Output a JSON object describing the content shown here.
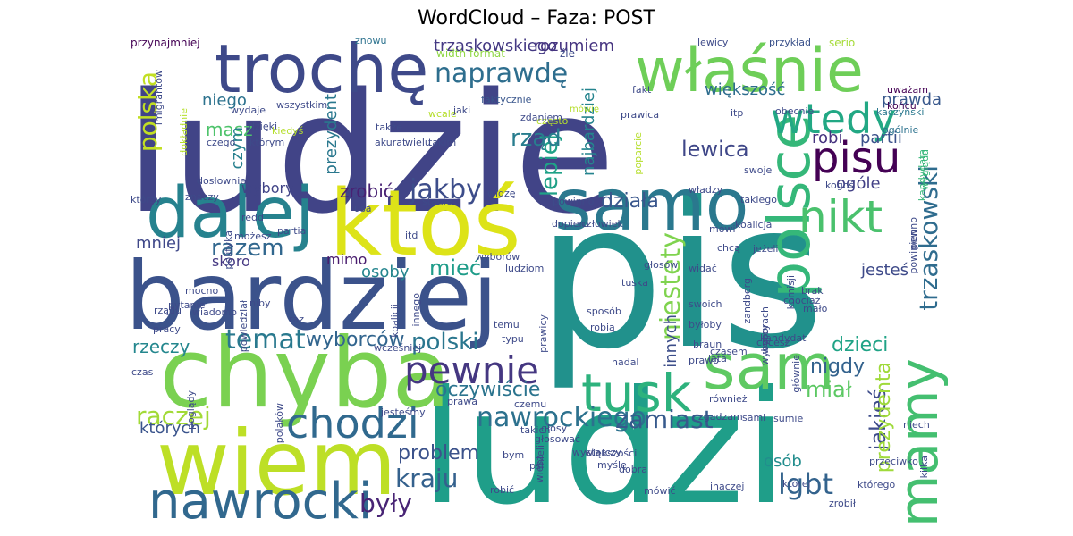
{
  "title": "WordCloud – Faza: POST",
  "words": [
    {
      "text": "ludzie",
      "color": "#414487"
    },
    {
      "text": "pis",
      "color": "#21918c"
    },
    {
      "text": "ludzi",
      "color": "#1f9e89"
    },
    {
      "text": "chyba",
      "color": "#7ad151"
    },
    {
      "text": "bardziej",
      "color": "#3b528b"
    },
    {
      "text": "wiem",
      "color": "#bddf26"
    },
    {
      "text": "ktoś",
      "color": "#dde318"
    },
    {
      "text": "trochę",
      "color": "#3e4989"
    },
    {
      "text": "dalej",
      "color": "#26828e"
    },
    {
      "text": "samo",
      "color": "#2a788e"
    },
    {
      "text": "właśnie",
      "color": "#6ece58"
    },
    {
      "text": "polsce",
      "color": "#35b779"
    },
    {
      "text": "sam",
      "color": "#5ec962"
    },
    {
      "text": "mamy",
      "color": "#44bf70"
    },
    {
      "text": "tusk",
      "color": "#2db27d"
    },
    {
      "text": "pisu",
      "color": "#440154"
    },
    {
      "text": "wtedy",
      "color": "#22a884"
    },
    {
      "text": "nikt",
      "color": "#4ac16d"
    },
    {
      "text": "nawrocki",
      "color": "#31688e"
    },
    {
      "text": "chodzi",
      "color": "#30698e"
    },
    {
      "text": "pewnie",
      "color": "#453781"
    },
    {
      "text": "nawrockiego",
      "color": "#2c718e"
    },
    {
      "text": "jakby",
      "color": "#3d4d8a"
    },
    {
      "text": "naprawdę",
      "color": "#2e6e8e"
    },
    {
      "text": "trzaskowski",
      "color": "#2f6c8e"
    },
    {
      "text": "niestety",
      "color": "#7fd34e"
    },
    {
      "text": "lepiej",
      "color": "#1fa187"
    },
    {
      "text": "rząd",
      "color": "#287d8e"
    },
    {
      "text": "polska",
      "color": "#c2df23"
    },
    {
      "text": "temat",
      "color": "#29798e"
    },
    {
      "text": "polski",
      "color": "#2a768e"
    },
    {
      "text": "zamiast",
      "color": "#375a8c"
    },
    {
      "text": "raczej",
      "color": "#a2da37"
    },
    {
      "text": "lgbt",
      "color": "#33638d"
    },
    {
      "text": "kraju",
      "color": "#34618d"
    },
    {
      "text": "były",
      "color": "#482475"
    },
    {
      "text": "jakieś",
      "color": "#3e4c8a"
    },
    {
      "text": "prezydenta",
      "color": "#9fda3a"
    },
    {
      "text": "dzieci",
      "color": "#20a386"
    },
    {
      "text": "miał",
      "color": "#5cc863"
    },
    {
      "text": "lewica",
      "color": "#3f4788"
    },
    {
      "text": "razem",
      "color": "#31678e"
    },
    {
      "text": "mieć",
      "color": "#1e9c89"
    },
    {
      "text": "wyborców",
      "color": "#32658e"
    },
    {
      "text": "oczywiście",
      "color": "#2b748e"
    },
    {
      "text": "problem",
      "color": "#3b528b"
    },
    {
      "text": "osób",
      "color": "#228d8d"
    },
    {
      "text": "których",
      "color": "#3a548c"
    },
    {
      "text": "nigdy",
      "color": "#33628d"
    },
    {
      "text": "rzeczy",
      "color": "#24878e"
    },
    {
      "text": "działa",
      "color": "#39568c"
    },
    {
      "text": "zrobić",
      "color": "#482173"
    },
    {
      "text": "osoby",
      "color": "#25858e"
    },
    {
      "text": "jesteś",
      "color": "#3e4a89"
    },
    {
      "text": "większość",
      "color": "#2e6d8e"
    },
    {
      "text": "prawda",
      "color": "#38588c"
    },
    {
      "text": "masz",
      "color": "#4ec36b"
    },
    {
      "text": "niego",
      "color": "#2c728e"
    },
    {
      "text": "partii",
      "color": "#3b518b"
    },
    {
      "text": "robi",
      "color": "#46337f"
    },
    {
      "text": "ogóle",
      "color": "#424086"
    },
    {
      "text": "wybory",
      "color": "#414487"
    },
    {
      "text": "skoro",
      "color": "#453882"
    },
    {
      "text": "mniej",
      "color": "#3f4889"
    },
    {
      "text": "trzaskowskiego",
      "color": "#443983"
    },
    {
      "text": "rozumiem",
      "color": "#463480"
    },
    {
      "text": "prezydent",
      "color": "#2a788e"
    },
    {
      "text": "najbardziej",
      "color": "#25848e"
    },
    {
      "text": "innych",
      "color": "#3d4e8a"
    },
    {
      "text": "czym",
      "color": "#27808e"
    },
    {
      "text": "mimo",
      "color": "#481b6d"
    }
  ],
  "small_words": [
    "przynajmniej",
    "znowu",
    "width format",
    "źle",
    "lewicy",
    "przykład",
    "serio",
    "imigrantów",
    "wszystkim",
    "wcale",
    "faktycznie",
    "mówię",
    "fakt",
    "uważam",
    "końcu",
    "kaczyński",
    "ogólnie",
    "dzięki",
    "którym",
    "wydaje",
    "jaki",
    "często",
    "zdaniem",
    "także",
    "wielu",
    "prawica",
    "obecnie",
    "poparcie",
    "kandydata",
    "dokładnie",
    "kiedyś",
    "czego",
    "akurat",
    "takim",
    "itp",
    "wygląda",
    "swoje",
    "dosłownie",
    "znaczy",
    "którzy",
    "widzę",
    "powinno",
    "władzy",
    "kogoś",
    "stanie",
    "usa",
    "takiego",
    "redd",
    "polityka",
    "partia",
    "dopiero",
    "człowiek",
    "możesz",
    "mówi",
    "koalicja",
    "pewno",
    "powinien",
    "itd",
    "chcą",
    "jeżeli",
    "widać",
    "tuska",
    "głosów",
    "komisji",
    "wiadomo",
    "pytanie",
    "powiedział",
    "niby",
    "mocno",
    "koalicji",
    "innego",
    "wyborów",
    "ludziom",
    "sposób",
    "robią",
    "swoich",
    "zandberg",
    "chociaż",
    "brak",
    "mało",
    "raz",
    "temu",
    "typu",
    "wyborach",
    "prawicy",
    "byłoby",
    "braun",
    "wyborcy",
    "pracy",
    "rządu",
    "czasem",
    "chcesz",
    "kandydat",
    "wcześniej",
    "czas",
    "prawo",
    "lata",
    "głównie",
    "poglądy",
    "nadal",
    "również",
    "zgadzam",
    "sami",
    "sumie",
    "czemu",
    "prawa",
    "jesteśmy",
    "głosować",
    "takich",
    "polaków",
    "robić",
    "psl",
    "wiesz",
    "mieli",
    "wystarczy",
    "głosy",
    "myślę",
    "większości",
    "przeciwko",
    "kilka",
    "niech",
    "bym",
    "dobra",
    "mówić",
    "inaczej",
    "której",
    "którego",
    "zrobił"
  ]
}
